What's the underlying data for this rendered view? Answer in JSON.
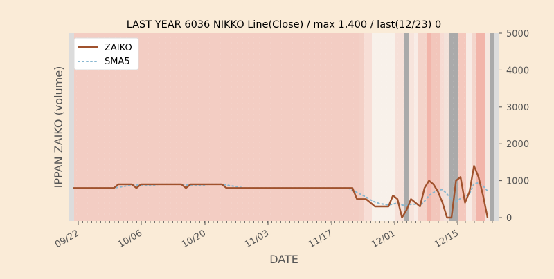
{
  "chart_data": {
    "type": "line",
    "title": "LAST YEAR 6036 NIKKO Line(Close) / max 1,400 / last(12/23) 0",
    "xlabel": "DATE",
    "ylabel": "IPPAN ZAIKO (volume)",
    "x_tick_labels": [
      "09/22",
      "10/06",
      "10/20",
      "11/03",
      "11/17",
      "12/01",
      "12/15"
    ],
    "y_ticks": [
      0,
      1000,
      2000,
      3000,
      4000,
      5000
    ],
    "y_axis_side": "right",
    "ylim": [
      -100,
      5000
    ],
    "legend_position": "top-left",
    "legend": [
      "ZAIKO",
      "SMA5"
    ],
    "colors": {
      "background": "#faebd7",
      "plot_background": "#f6e7df",
      "zaiko": "#a0522d",
      "sma5": "#87b7d0"
    },
    "series": [
      {
        "name": "ZAIKO",
        "values": [
          800,
          800,
          800,
          800,
          800,
          800,
          800,
          800,
          800,
          800,
          900,
          900,
          900,
          900,
          800,
          900,
          900,
          900,
          900,
          900,
          900,
          900,
          900,
          900,
          900,
          800,
          900,
          900,
          900,
          900,
          900,
          900,
          900,
          900,
          800,
          800,
          800,
          800,
          800,
          800,
          800,
          800,
          800,
          800,
          800,
          800,
          800,
          800,
          800,
          800,
          800,
          800,
          800,
          800,
          800,
          800,
          800,
          800,
          800,
          800,
          800,
          800,
          800,
          500,
          500,
          500,
          400,
          300,
          300,
          300,
          300,
          600,
          500,
          0,
          200,
          500,
          400,
          300,
          800,
          1000,
          900,
          700,
          400,
          0,
          0,
          1000,
          1100,
          400,
          700,
          1400,
          1100,
          600,
          0
        ]
      },
      {
        "name": "SMA5",
        "values": [
          null,
          null,
          null,
          null,
          800,
          800,
          800,
          800,
          800,
          800,
          820,
          840,
          860,
          880,
          880,
          880,
          880,
          880,
          880,
          900,
          900,
          900,
          900,
          900,
          900,
          880,
          880,
          880,
          880,
          880,
          900,
          900,
          900,
          900,
          880,
          860,
          840,
          820,
          800,
          800,
          800,
          800,
          800,
          800,
          800,
          800,
          800,
          800,
          800,
          800,
          800,
          800,
          800,
          800,
          800,
          800,
          800,
          800,
          800,
          800,
          800,
          800,
          740,
          680,
          620,
          560,
          480,
          420,
          380,
          360,
          340,
          360,
          400,
          340,
          320,
          360,
          360,
          320,
          440,
          600,
          680,
          740,
          760,
          640,
          480,
          420,
          520,
          560,
          640,
          920,
          940,
          860,
          720
        ]
      }
    ]
  }
}
